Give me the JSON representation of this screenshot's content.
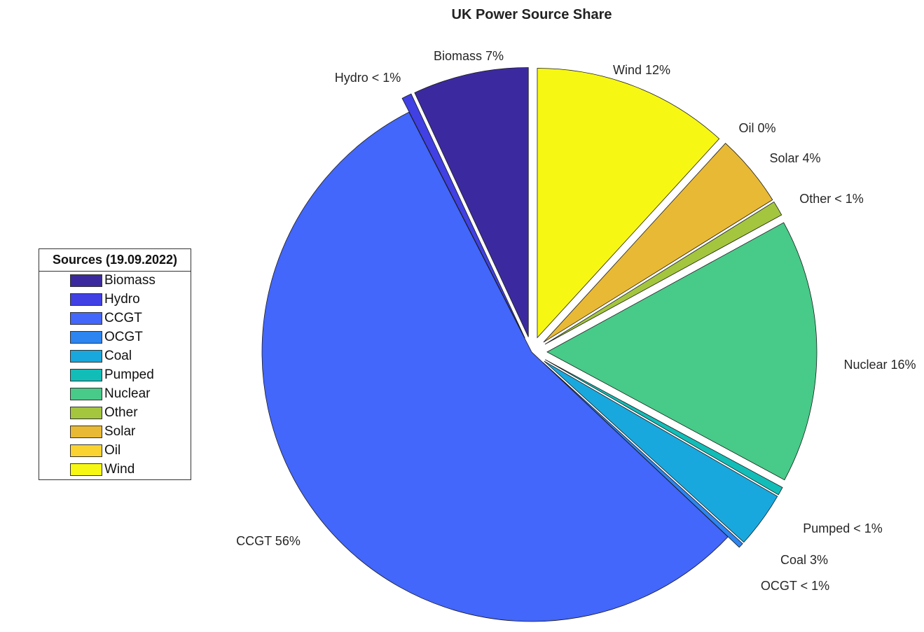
{
  "chart_data": {
    "type": "pie",
    "title": "UK Power Source Share",
    "legend_title": "Sources (19.09.2022)",
    "legend_position": "left",
    "exploded": true,
    "slices": [
      {
        "name": "Biomass",
        "value": 7.0,
        "label": "Biomass 7%",
        "color": "#3B2A9F"
      },
      {
        "name": "Hydro",
        "value": 0.6,
        "label": "Hydro < 1%",
        "color": "#4040E4"
      },
      {
        "name": "CCGT",
        "value": 56.0,
        "label": "CCGT 56%",
        "color": "#4366FB"
      },
      {
        "name": "OCGT",
        "value": 0.3,
        "label": "OCGT < 1%",
        "color": "#2C85F0"
      },
      {
        "name": "Coal",
        "value": 3.4,
        "label": "Coal 3%",
        "color": "#19A8DD"
      },
      {
        "name": "Pumped",
        "value": 0.5,
        "label": "Pumped < 1%",
        "color": "#12BDB8"
      },
      {
        "name": "Nuclear",
        "value": 16.0,
        "label": "Nuclear 16%",
        "color": "#48CA89"
      },
      {
        "name": "Other",
        "value": 0.9,
        "label": "Other < 1%",
        "color": "#A3C63E"
      },
      {
        "name": "Solar",
        "value": 4.4,
        "label": "Solar 4%",
        "color": "#E8B934"
      },
      {
        "name": "Oil",
        "value": 0.0,
        "label": "Oil 0%",
        "color": "#FAD330"
      },
      {
        "name": "Wind",
        "value": 11.9,
        "label": "Wind 12%",
        "color": "#F7F714"
      }
    ],
    "legend_order": [
      "Biomass",
      "Hydro",
      "CCGT",
      "OCGT",
      "Coal",
      "Pumped",
      "Nuclear",
      "Other",
      "Solar",
      "Oil",
      "Wind"
    ]
  }
}
